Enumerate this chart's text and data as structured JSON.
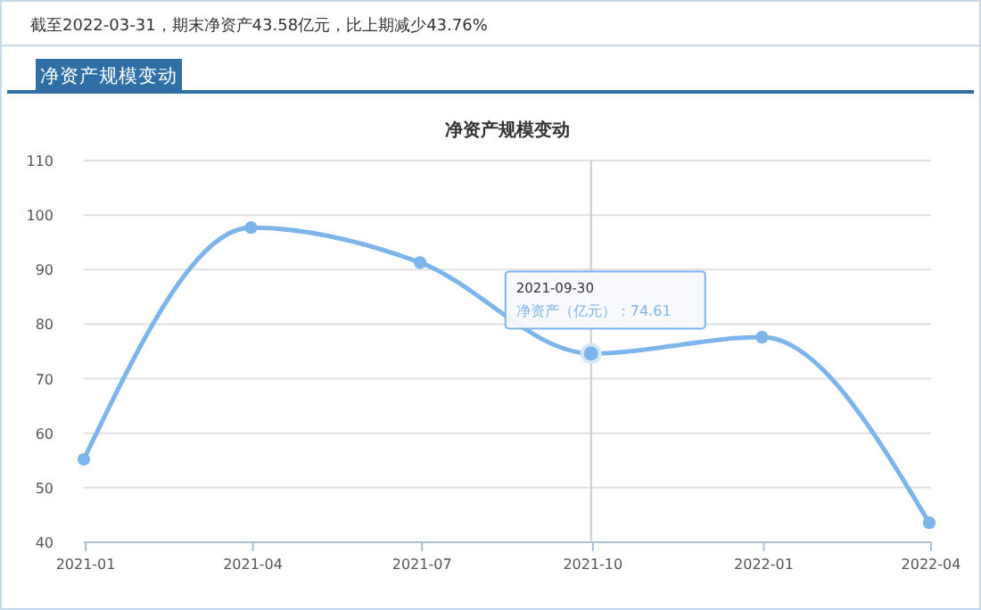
{
  "chart_data": {
    "type": "line",
    "title": "净资产规模变动",
    "x": [
      "2020-12-31",
      "2021-03-31",
      "2021-06-30",
      "2021-09-30",
      "2021-12-31",
      "2022-03-31"
    ],
    "series": [
      {
        "color": "#7cb5ec",
        "values": [
          55.2,
          97.7,
          91.3,
          74.61,
          77.6,
          43.58
        ]
      }
    ],
    "xlim": [
      "2020-12-31",
      "2022-04-01"
    ],
    "xticks": [
      "2021-01",
      "2021-04",
      "2021-07",
      "2021-10",
      "2022-01",
      "2022-04"
    ],
    "ylim": [
      40,
      110
    ],
    "yticks": [
      40,
      50,
      60,
      70,
      80,
      90,
      100,
      110
    ],
    "grid": "y",
    "marker": "circle",
    "line_style": "solid",
    "ref_lines": [
      {
        "axis": "x",
        "value": "2021-09-30",
        "color": "#cccccc"
      }
    ],
    "annotations": [
      "截至2022-03-31，期末净资产43.58亿元，比上期减少43.76%",
      "净资产规模变动",
      {
        "text": "2021-09-30\n净资产（亿元）：74.61",
        "x": "2021-09-30",
        "y": 74.61
      }
    ]
  }
}
